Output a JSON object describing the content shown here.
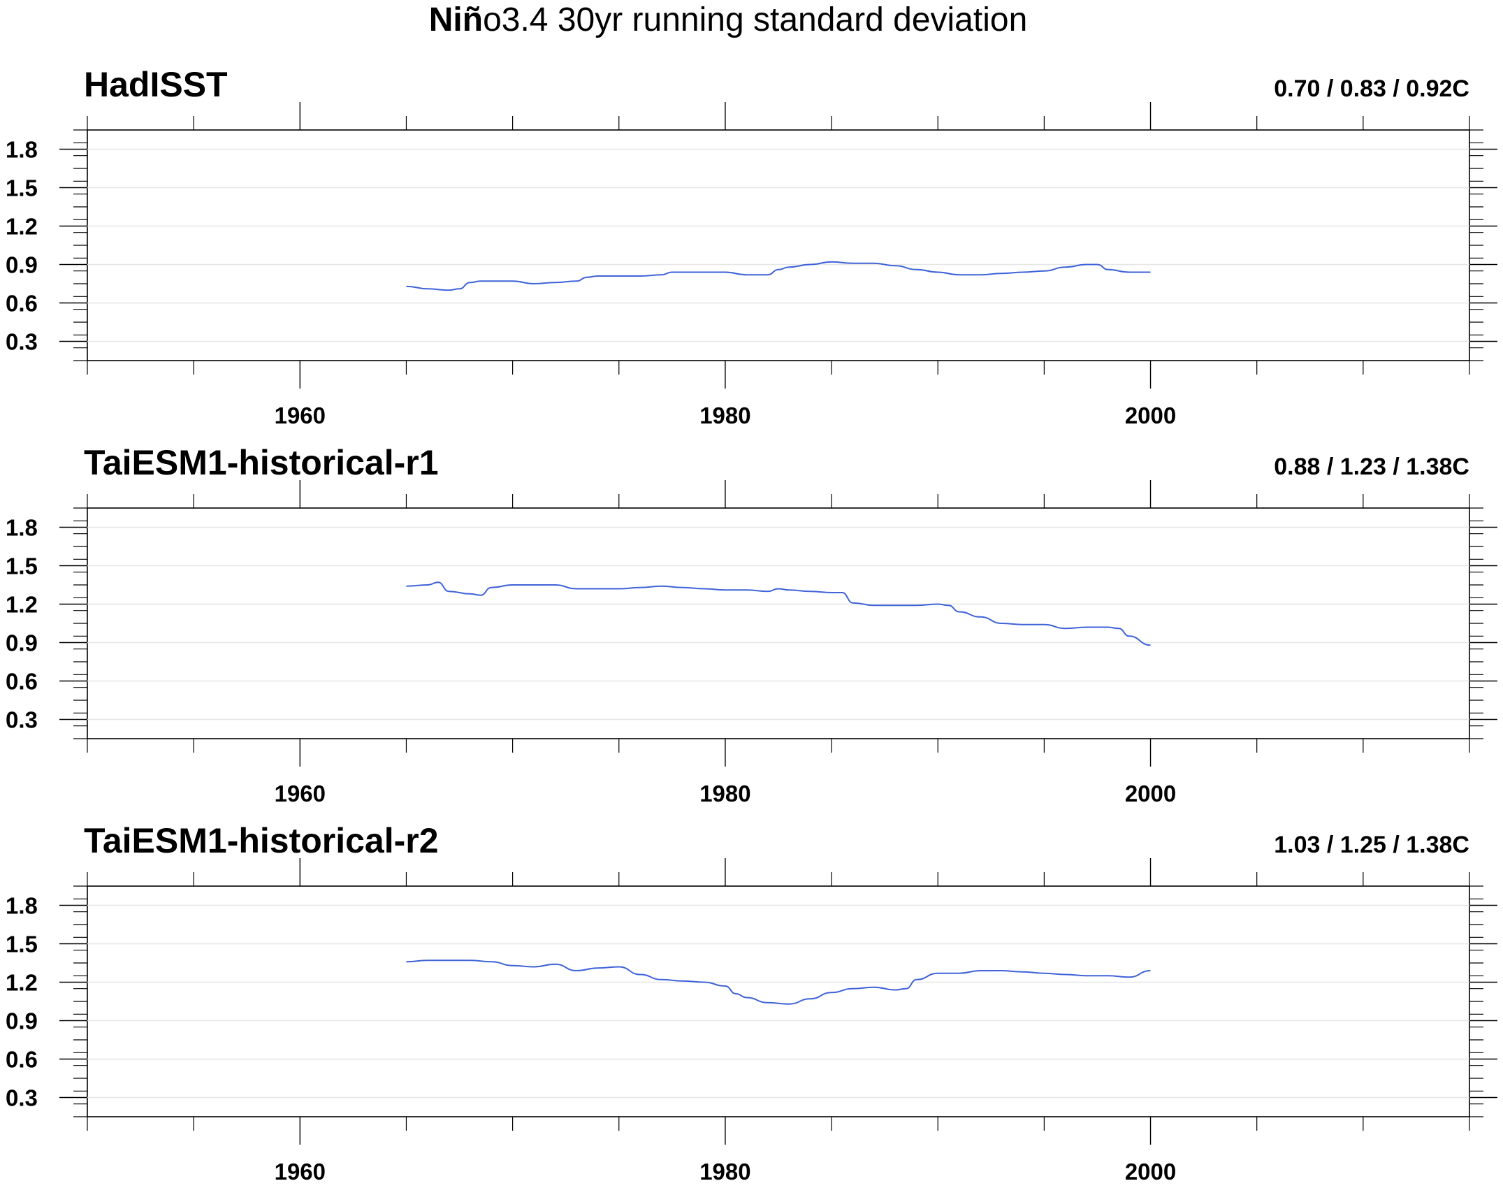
{
  "chart_data": {
    "type": "line",
    "title_bold": "Niñ",
    "title_rest": "o3.4 30yr running standard deviation",
    "x_range": [
      1950,
      2015
    ],
    "y_range": [
      0.15,
      1.95
    ],
    "xticks_major": [
      1960,
      1980,
      2000
    ],
    "xticks_minor": [
      1950,
      1955,
      1965,
      1970,
      1975,
      1985,
      1990,
      1995,
      2005,
      2010,
      2015
    ],
    "yticks": [
      0.3,
      0.6,
      0.9,
      1.2,
      1.5,
      1.8
    ],
    "ytick_labels": [
      "0.3",
      "0.6",
      "0.9",
      "1.2",
      "1.5",
      "1.8"
    ],
    "line_color": "#3f63d8",
    "grid_color": "#e6e6e6",
    "panels": [
      {
        "title": "HadISST",
        "stats": "0.70 / 0.83 / 0.92C",
        "series": {
          "x": [
            1965,
            1966,
            1967,
            1967.5,
            1968,
            1968.5,
            1969,
            1970,
            1971,
            1972,
            1973,
            1973.5,
            1974,
            1975,
            1976,
            1977,
            1977.5,
            1978,
            1979,
            1980,
            1981,
            1982,
            1982.5,
            1983,
            1984,
            1985,
            1986,
            1987,
            1988,
            1989,
            1990,
            1991,
            1992,
            1993,
            1994,
            1995,
            1996,
            1997,
            1997.5,
            1998,
            1999,
            2000
          ],
          "y": [
            0.73,
            0.71,
            0.7,
            0.71,
            0.76,
            0.77,
            0.77,
            0.77,
            0.75,
            0.76,
            0.77,
            0.8,
            0.81,
            0.81,
            0.81,
            0.82,
            0.84,
            0.84,
            0.84,
            0.84,
            0.82,
            0.82,
            0.86,
            0.88,
            0.9,
            0.92,
            0.91,
            0.91,
            0.89,
            0.86,
            0.84,
            0.82,
            0.82,
            0.83,
            0.84,
            0.85,
            0.88,
            0.9,
            0.9,
            0.86,
            0.84,
            0.84
          ]
        }
      },
      {
        "title": "TaiESM1-historical-r1",
        "stats": "0.88 / 1.23 / 1.38C",
        "series": {
          "x": [
            1965,
            1966,
            1966.5,
            1967,
            1968,
            1968.5,
            1969,
            1970,
            1971,
            1972,
            1973,
            1974,
            1975,
            1976,
            1977,
            1978,
            1979,
            1980,
            1981,
            1982,
            1982.5,
            1983,
            1984,
            1985,
            1985.5,
            1986,
            1987,
            1988,
            1989,
            1990,
            1990.5,
            1991,
            1992,
            1993,
            1994,
            1995,
            1996,
            1997,
            1998,
            1998.5,
            1999,
            2000
          ],
          "y": [
            1.34,
            1.35,
            1.37,
            1.3,
            1.28,
            1.27,
            1.33,
            1.35,
            1.35,
            1.35,
            1.32,
            1.32,
            1.32,
            1.33,
            1.34,
            1.33,
            1.32,
            1.31,
            1.31,
            1.3,
            1.32,
            1.31,
            1.3,
            1.29,
            1.29,
            1.21,
            1.19,
            1.19,
            1.19,
            1.2,
            1.19,
            1.14,
            1.1,
            1.05,
            1.04,
            1.04,
            1.01,
            1.02,
            1.02,
            1.01,
            0.95,
            0.88
          ]
        }
      },
      {
        "title": "TaiESM1-historical-r2",
        "stats": "1.03 / 1.25 / 1.38C",
        "series": {
          "x": [
            1965,
            1966,
            1967,
            1968,
            1969,
            1970,
            1971,
            1972,
            1973,
            1974,
            1975,
            1976,
            1977,
            1978,
            1979,
            1980,
            1980.5,
            1981,
            1982,
            1983,
            1984,
            1985,
            1986,
            1987,
            1988,
            1988.5,
            1989,
            1990,
            1991,
            1992,
            1993,
            1994,
            1995,
            1996,
            1997,
            1998,
            1999,
            2000
          ],
          "y": [
            1.36,
            1.37,
            1.37,
            1.37,
            1.36,
            1.33,
            1.32,
            1.34,
            1.29,
            1.31,
            1.32,
            1.26,
            1.22,
            1.21,
            1.2,
            1.17,
            1.11,
            1.08,
            1.04,
            1.03,
            1.07,
            1.12,
            1.15,
            1.16,
            1.14,
            1.15,
            1.22,
            1.27,
            1.27,
            1.29,
            1.29,
            1.28,
            1.27,
            1.26,
            1.25,
            1.25,
            1.24,
            1.29
          ]
        }
      }
    ]
  }
}
